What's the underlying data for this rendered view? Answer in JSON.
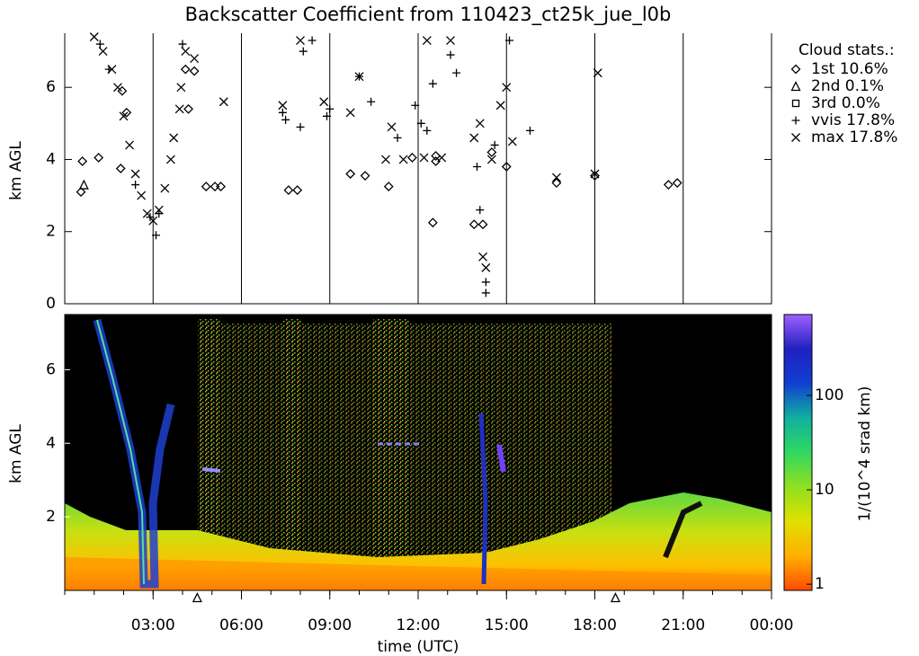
{
  "chart_data": [
    {
      "type": "scatter",
      "title": "Backscatter Coefficient from 110423_ct25k_jue_l0b",
      "ylabel": "km AGL",
      "xlim": [
        0,
        24
      ],
      "ylim": [
        0,
        7.5
      ],
      "yticks": [
        0,
        2,
        4,
        6
      ],
      "legend_title": "Cloud stats.:",
      "legend": "right",
      "series": [
        {
          "name": "1st 10.6%",
          "marker": "diamond",
          "color": "#000000",
          "x": [
            0.55,
            0.6,
            1.15,
            1.9,
            1.95,
            2.1,
            4.2,
            4.1,
            4.4,
            4.8,
            5.1,
            5.3,
            7.6,
            7.9,
            9.7,
            10.2,
            11.0,
            11.8,
            12.6,
            12.6,
            12.5,
            13.9,
            14.2,
            16.7,
            18.0,
            20.5,
            20.8,
            14.5,
            15.0
          ],
          "y": [
            3.1,
            3.95,
            4.05,
            3.75,
            5.9,
            5.3,
            5.4,
            6.5,
            6.45,
            3.25,
            3.25,
            3.25,
            3.15,
            3.15,
            3.6,
            3.55,
            3.25,
            4.05,
            3.95,
            4.1,
            2.25,
            2.2,
            2.2,
            3.35,
            3.55,
            3.3,
            3.35,
            4.2,
            3.8
          ]
        },
        {
          "name": "2nd  0.1%",
          "marker": "triangle",
          "color": "#000000",
          "x": [
            0.65
          ],
          "y": [
            3.3
          ]
        },
        {
          "name": "3rd  0.0%",
          "marker": "square",
          "color": "#000000",
          "x": [],
          "y": []
        },
        {
          "name": "vvis 17.8%",
          "marker": "plus",
          "color": "#000000",
          "x": [
            3.1,
            4.0,
            7.4,
            7.5,
            8.0,
            8.1,
            8.4,
            8.9,
            9.0,
            10.0,
            10.4,
            11.3,
            11.9,
            12.1,
            12.3,
            12.5,
            13.1,
            13.3,
            14.0,
            14.3,
            14.3,
            14.1,
            14.6,
            15.1,
            15.8,
            3.2,
            2.9,
            2.4,
            1.5,
            1.2
          ],
          "y": [
            1.9,
            7.2,
            5.3,
            5.1,
            4.9,
            7.0,
            7.3,
            5.2,
            5.4,
            6.3,
            5.6,
            4.6,
            5.5,
            5.0,
            4.8,
            6.1,
            6.9,
            6.4,
            3.8,
            0.3,
            0.6,
            2.6,
            4.4,
            7.3,
            4.8,
            2.5,
            2.4,
            3.3,
            6.5,
            7.2
          ]
        },
        {
          "name": "max 17.8%",
          "marker": "cross",
          "color": "#000000",
          "x": [
            1.0,
            1.3,
            1.6,
            1.8,
            2.0,
            2.2,
            2.4,
            2.6,
            2.8,
            3.0,
            3.2,
            3.4,
            3.6,
            3.7,
            3.9,
            3.95,
            4.1,
            4.4,
            5.4,
            7.4,
            8.0,
            8.8,
            9.7,
            10.0,
            10.9,
            11.1,
            11.5,
            12.2,
            12.3,
            12.8,
            13.1,
            13.9,
            14.1,
            14.2,
            14.3,
            14.5,
            14.8,
            15.0,
            15.2,
            16.7,
            18.0,
            18.1
          ],
          "y": [
            7.4,
            7.0,
            6.5,
            6.0,
            5.2,
            4.4,
            3.6,
            3.0,
            2.5,
            2.3,
            2.6,
            3.2,
            4.0,
            4.6,
            5.4,
            6.0,
            7.0,
            6.8,
            5.6,
            5.5,
            7.3,
            5.6,
            5.3,
            6.3,
            4.0,
            4.9,
            4.0,
            4.05,
            7.3,
            4.05,
            7.3,
            4.6,
            5.0,
            1.3,
            1.0,
            4.0,
            5.5,
            6.0,
            4.5,
            3.5,
            3.6,
            6.4
          ]
        }
      ]
    },
    {
      "type": "heatmap",
      "ylabel": "km AGL",
      "xlabel": "time (UTC)",
      "xlim": [
        0,
        24
      ],
      "ylim": [
        0,
        7.5
      ],
      "yticks": [
        2,
        4,
        6
      ],
      "xticks": [
        {
          "value": 3,
          "label": "03:00"
        },
        {
          "value": 6,
          "label": "06:00"
        },
        {
          "value": 9,
          "label": "09:00"
        },
        {
          "value": 12,
          "label": "12:00"
        },
        {
          "value": 15,
          "label": "15:00"
        },
        {
          "value": 18,
          "label": "18:00"
        },
        {
          "value": 21,
          "label": "21:00"
        },
        {
          "value": 24,
          "label": "00:00"
        }
      ],
      "event_x": [
        4.5,
        18.7
      ],
      "colorbar_label": "1/(10^4 srad km)",
      "colorbar_log": true,
      "clim": [
        0.86,
        720
      ],
      "cticks": [
        1,
        10,
        100
      ],
      "colormap": [
        "#ff4a00",
        "#ffb000",
        "#e0e000",
        "#90e020",
        "#30d860",
        "#10b0a0",
        "#1040d0",
        "#2020c0",
        "#a060ff"
      ]
    }
  ]
}
